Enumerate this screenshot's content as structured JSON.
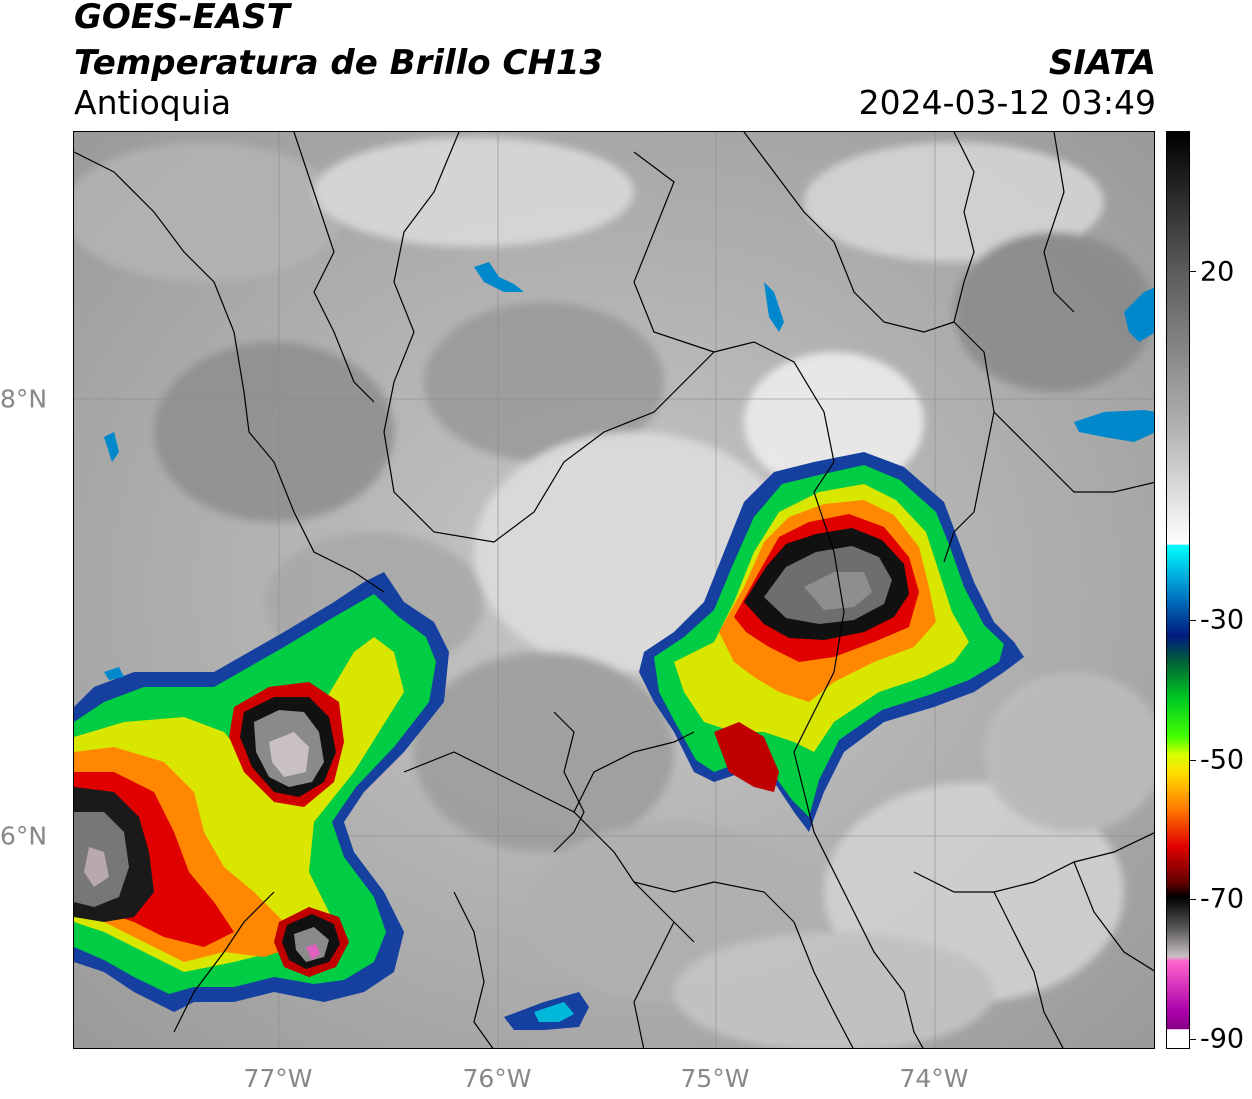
{
  "header": {
    "satellite": "GOES-EAST",
    "product": "Temperatura de Brillo CH13",
    "region": "Antioquia",
    "institution": "SIATA",
    "datetime": "2024-03-12 03:49"
  },
  "map": {
    "longitude_labels": [
      "77°W",
      "76°W",
      "75°W",
      "74°W"
    ],
    "latitude_labels": [
      "8°N",
      "6°N"
    ],
    "extent": {
      "lon_min": -77.95,
      "lon_max": -73.05,
      "lat_min": 4.95,
      "lat_max": 9.2
    }
  },
  "colorbar": {
    "tick_labels": [
      "20",
      "-30",
      "-50",
      "-70",
      "-90"
    ],
    "value_range": [
      -90,
      30
    ]
  }
}
